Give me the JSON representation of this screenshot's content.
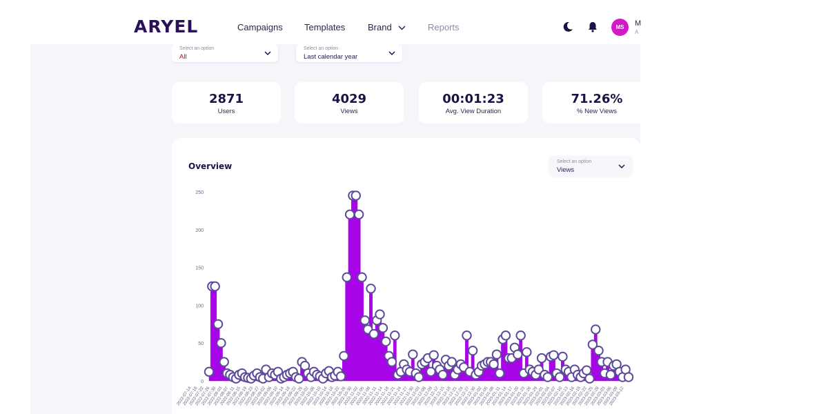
{
  "header": {
    "logo_text": "ARYEL",
    "nav": [
      {
        "label": "Campaigns"
      },
      {
        "label": "Templates"
      },
      {
        "label": "Brand"
      },
      {
        "label": "Reports"
      }
    ],
    "avatar": {
      "initials": "MS",
      "name": "M",
      "role": "A"
    }
  },
  "filters": {
    "option_placeholder": "Select an option",
    "first_value": "All",
    "second_value": "Last calendar year"
  },
  "kpis": [
    {
      "value": "2871",
      "label": "Users"
    },
    {
      "value": "4029",
      "label": "Views"
    },
    {
      "value": "00:01:23",
      "label": "Avg. View Duration"
    },
    {
      "value": "71.26%",
      "label": "% New Views"
    }
  ],
  "overview": {
    "title": "Overview",
    "select_placeholder": "Select an option",
    "select_value": "Views"
  },
  "colors": {
    "accent": "#a705e8",
    "brand": "#d319c6",
    "marker_stroke": "#5d4a9b"
  },
  "chart_data": {
    "type": "area",
    "ylim": [
      0,
      250
    ],
    "yticks": [
      0,
      50,
      100,
      150,
      200,
      250
    ],
    "grid": false,
    "x_labels": [
      "2022-07-14",
      "2022-07-18",
      "2022-07-22",
      "2022-07-26",
      "2022-07-30",
      "2022-08-03",
      "2022-08-07",
      "2022-08-11",
      "2022-08-15",
      "2022-08-19",
      "2022-08-23",
      "2022-08-27",
      "2022-09-02",
      "2022-09-06",
      "2022-09-10",
      "2022-09-14",
      "2022-09-18",
      "2022-09-22",
      "2022-09-26",
      "2022-10-02",
      "2022-10-06",
      "2022-10-10",
      "2022-10-14",
      "2022-10-18",
      "2022-10-22",
      "2022-10-26",
      "2022-10-30",
      "2022-11-02",
      "2022-11-05",
      "2022-11-08",
      "2022-11-11",
      "2022-11-14",
      "2022-11-18",
      "2022-11-21",
      "2022-11-24",
      "2022-11-27",
      "2022-11-30",
      "2022-12-03",
      "2022-12-06",
      "2022-12-09",
      "2022-12-12",
      "2022-12-15",
      "2022-12-18",
      "2022-12-21",
      "2022-12-24",
      "2022-12-27",
      "2022-12-30",
      "2023-01-02",
      "2023-01-05",
      "2023-01-08",
      "2023-01-11",
      "2023-01-14",
      "2023-01-17",
      "2023-01-20",
      "2023-01-23",
      "2023-01-26",
      "2023-01-29",
      "2023-02-01",
      "2023-02-04",
      "2023-02-07",
      "2023-02-10",
      "2023-02-13",
      "2023-02-16",
      "2023-02-19",
      "2023-02-22",
      "2023-02-25",
      "2023-02-28",
      "2023-03-03",
      "2023-03-06",
      "2023-03-09",
      "2023-03-12"
    ],
    "values": [
      12,
      125,
      125,
      75,
      50,
      25,
      10,
      8,
      5,
      3,
      8,
      10,
      5,
      4,
      3,
      7,
      10,
      5,
      3,
      15,
      5,
      10,
      8,
      12,
      3,
      5,
      8,
      10,
      12,
      5,
      3,
      25,
      20,
      10,
      5,
      12,
      8,
      6,
      3,
      10,
      13,
      5,
      7,
      12,
      6,
      33,
      137,
      220,
      245,
      245,
      220,
      137,
      80,
      68,
      122,
      62,
      80,
      88,
      70,
      52,
      33,
      25,
      60,
      8,
      12,
      22,
      15,
      12,
      35,
      10,
      5,
      22,
      25,
      30,
      12,
      34,
      20,
      15,
      8,
      28,
      20,
      25,
      8,
      15,
      22,
      18,
      60,
      12,
      40,
      8,
      12,
      20,
      22,
      25,
      25,
      22,
      35,
      10,
      55,
      60,
      30,
      30,
      44,
      35,
      60,
      10,
      38,
      15,
      12,
      8,
      15,
      30,
      8,
      5,
      32,
      34,
      10,
      5,
      32,
      15,
      12,
      5,
      15,
      8,
      5,
      10,
      14,
      3,
      48,
      68,
      40,
      25,
      10,
      25,
      8,
      20,
      22,
      12,
      5,
      15,
      5
    ]
  }
}
